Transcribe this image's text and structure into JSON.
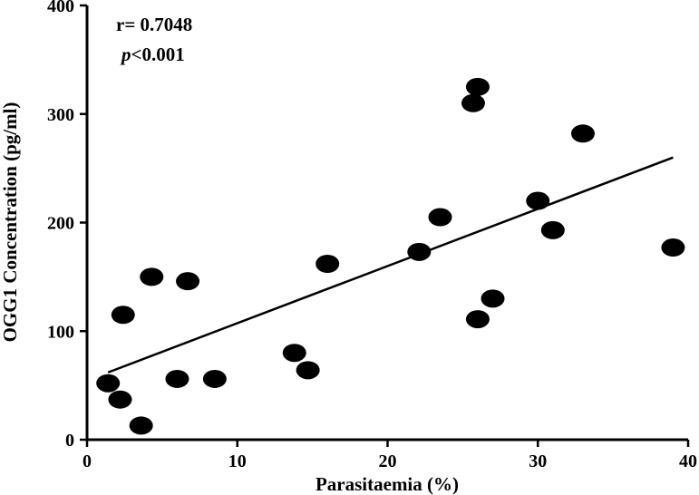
{
  "chart_data": {
    "type": "scatter",
    "xlabel": "Parasitaemia (%)",
    "ylabel": "OGG1 Concentration (pg/ml)",
    "xlim": [
      0,
      40
    ],
    "ylim": [
      0,
      400
    ],
    "x_ticks": [
      0,
      10,
      20,
      30,
      40
    ],
    "y_ticks": [
      0,
      100,
      200,
      300,
      400
    ],
    "grid": false,
    "points": [
      {
        "x": 1.4,
        "y": 52
      },
      {
        "x": 2.2,
        "y": 37
      },
      {
        "x": 2.4,
        "y": 115
      },
      {
        "x": 3.6,
        "y": 13
      },
      {
        "x": 4.3,
        "y": 150
      },
      {
        "x": 6.0,
        "y": 56
      },
      {
        "x": 6.7,
        "y": 146
      },
      {
        "x": 8.5,
        "y": 56
      },
      {
        "x": 13.8,
        "y": 80
      },
      {
        "x": 14.7,
        "y": 64
      },
      {
        "x": 16.0,
        "y": 162
      },
      {
        "x": 22.1,
        "y": 173
      },
      {
        "x": 23.5,
        "y": 205
      },
      {
        "x": 25.7,
        "y": 310
      },
      {
        "x": 26.0,
        "y": 325
      },
      {
        "x": 26.0,
        "y": 111
      },
      {
        "x": 27.0,
        "y": 130
      },
      {
        "x": 30.0,
        "y": 220
      },
      {
        "x": 31.0,
        "y": 193
      },
      {
        "x": 33.0,
        "y": 282
      },
      {
        "x": 39.0,
        "y": 177
      }
    ],
    "trendline": {
      "x": [
        1.4,
        39.0
      ],
      "y": [
        62,
        260
      ]
    },
    "annotations": {
      "r_text": "r= 0.7048",
      "p_symbol": "p",
      "p_text": "<0.001"
    }
  }
}
